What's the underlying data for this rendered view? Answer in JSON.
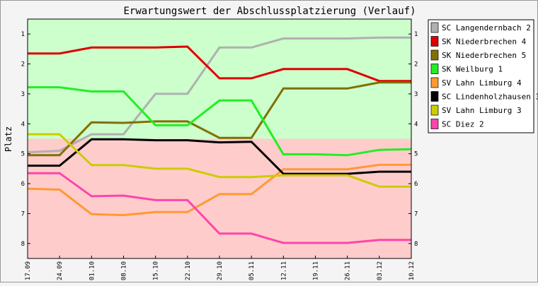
{
  "chart_data": {
    "type": "line",
    "title": "Erwartungswert der Abschlussplatzierung (Verlauf)",
    "ylabel": "Platz",
    "xlabel": "",
    "categories": [
      "17.09",
      "24.09",
      "01.10",
      "08.10",
      "15.10",
      "22.10",
      "29.10",
      "05.11",
      "12.11",
      "19.11",
      "26.11",
      "03.12",
      "10.12"
    ],
    "ylim": [
      0.5,
      8.5
    ],
    "y_inverted": true,
    "yticks": [
      1,
      2,
      3,
      4,
      5,
      6,
      7,
      8
    ],
    "zones": [
      {
        "from": 0.5,
        "to": 4.5,
        "color": "#ccffcc"
      },
      {
        "from": 4.5,
        "to": 8.5,
        "color": "#ffcccc"
      }
    ],
    "legend_position": "right",
    "series": [
      {
        "name": "SC Langendernbach 2",
        "color": "#b0b0b0",
        "values": [
          4.95,
          4.9,
          4.35,
          4.35,
          3.0,
          3.0,
          1.45,
          1.45,
          1.15,
          1.15,
          1.15,
          1.12,
          1.12
        ]
      },
      {
        "name": "SK Niederbrechen 4",
        "color": "#dd0000",
        "values": [
          1.65,
          1.65,
          1.45,
          1.45,
          1.45,
          1.42,
          2.48,
          2.48,
          2.17,
          2.17,
          2.17,
          2.57,
          2.57
        ]
      },
      {
        "name": "SK Niederbrechen 5",
        "color": "#807000",
        "values": [
          5.05,
          5.05,
          3.95,
          3.97,
          3.92,
          3.92,
          4.47,
          4.47,
          2.82,
          2.82,
          2.82,
          2.62,
          2.62
        ]
      },
      {
        "name": "SK Weilburg 1",
        "color": "#22ee22",
        "values": [
          2.78,
          2.78,
          2.92,
          2.92,
          4.05,
          4.05,
          3.22,
          3.22,
          5.02,
          5.02,
          5.05,
          4.87,
          4.85
        ]
      },
      {
        "name": "SV Lahn Limburg 4",
        "color": "#ff9933",
        "values": [
          6.17,
          6.2,
          7.02,
          7.05,
          6.95,
          6.95,
          6.35,
          6.35,
          5.52,
          5.52,
          5.52,
          5.37,
          5.37
        ]
      },
      {
        "name": "SC Lindenholzhausen 3",
        "color": "#000000",
        "values": [
          5.4,
          5.4,
          4.52,
          4.52,
          4.55,
          4.55,
          4.62,
          4.6,
          5.67,
          5.67,
          5.67,
          5.6,
          5.6
        ]
      },
      {
        "name": "SV Lahn Limburg 3",
        "color": "#cccc00",
        "values": [
          4.35,
          4.35,
          5.38,
          5.38,
          5.5,
          5.5,
          5.78,
          5.78,
          5.72,
          5.72,
          5.72,
          6.1,
          6.1
        ]
      },
      {
        "name": "SC Diez 2",
        "color": "#ff44aa",
        "values": [
          5.65,
          5.65,
          6.42,
          6.4,
          6.55,
          6.55,
          7.67,
          7.67,
          7.98,
          7.98,
          7.98,
          7.88,
          7.88
        ]
      }
    ]
  }
}
